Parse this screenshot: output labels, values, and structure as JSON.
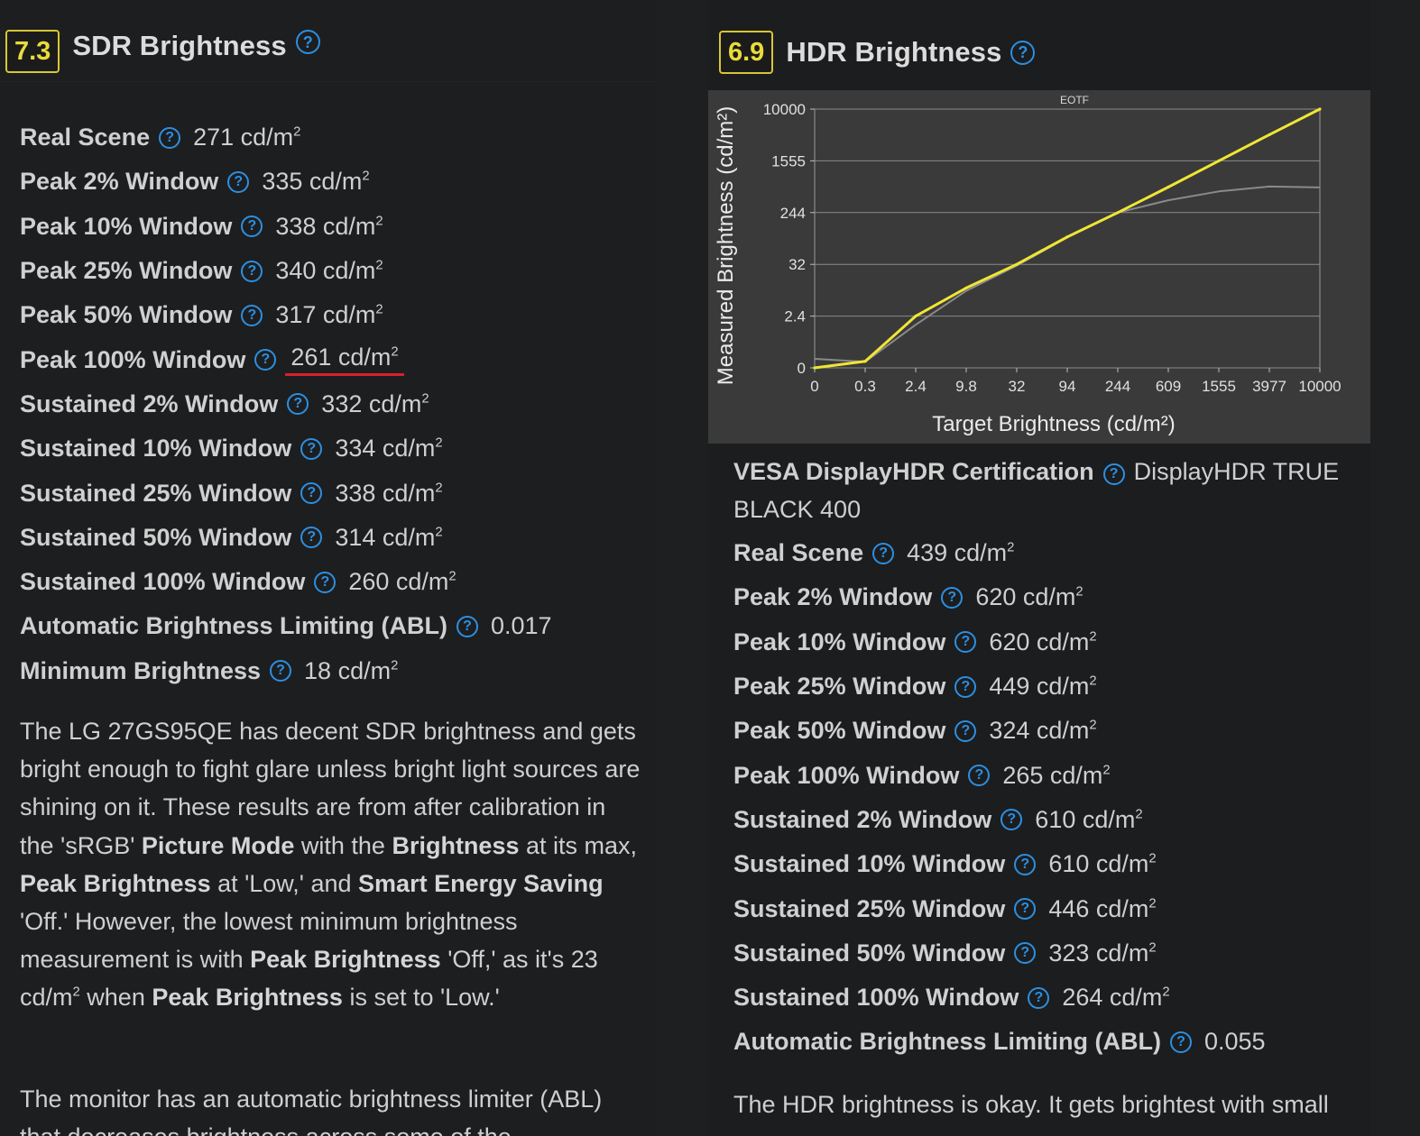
{
  "sdr": {
    "score": "7.3",
    "title": "SDR Brightness",
    "rows": [
      {
        "label": "Real Scene",
        "value": "271 cd/m"
      },
      {
        "label": "Peak 2% Window",
        "value": "335 cd/m"
      },
      {
        "label": "Peak 10% Window",
        "value": "338 cd/m"
      },
      {
        "label": "Peak 25% Window",
        "value": "340 cd/m"
      },
      {
        "label": "Peak 50% Window",
        "value": "317 cd/m"
      },
      {
        "label": "Peak 100% Window",
        "value": "261 cd/m"
      },
      {
        "label": "Sustained 2% Window",
        "value": "332 cd/m"
      },
      {
        "label": "Sustained 10% Window",
        "value": "334 cd/m"
      },
      {
        "label": "Sustained 25% Window",
        "value": "338 cd/m"
      },
      {
        "label": "Sustained 50% Window",
        "value": "314 cd/m"
      },
      {
        "label": "Sustained 100% Window",
        "value": "260 cd/m"
      },
      {
        "label": "Automatic Brightness Limiting (ABL)",
        "value": "0.017"
      },
      {
        "label": "Minimum Brightness",
        "value": "18 cd/m"
      }
    ],
    "para1": {
      "t1": "The LG 27GS95QE has decent SDR brightness and gets bright enough to fight glare unless bright light sources are shining on it. These results are from after calibration in the 'sRGB' ",
      "b1": "Picture Mode",
      "t2": " with the ",
      "b2": "Brightness",
      "t3": " at its max, ",
      "b3": "Peak Brightness",
      "t4": " at 'Low,' and ",
      "b4": "Smart Energy Saving",
      "t5": " 'Off.' However, the lowest minimum brightness measurement is with ",
      "b5": "Peak Brightness",
      "t6": " 'Off,' as it's 23 cd/m",
      "t7": " when ",
      "b6": "Peak Brightness",
      "t8": " is set to 'Low.'"
    },
    "para2": "The monitor has an automatic brightness limiter (ABL) that decreases brightness across some of the"
  },
  "hdr": {
    "score": "6.9",
    "title": "HDR Brightness",
    "cert_label": "VESA DisplayHDR Certification",
    "cert_value": "DisplayHDR TRUE BLACK 400",
    "rows": [
      {
        "label": "Real Scene",
        "value": "439 cd/m"
      },
      {
        "label": "Peak 2% Window",
        "value": "620 cd/m"
      },
      {
        "label": "Peak 10% Window",
        "value": "620 cd/m"
      },
      {
        "label": "Peak 25% Window",
        "value": "449 cd/m"
      },
      {
        "label": "Peak 50% Window",
        "value": "324 cd/m"
      },
      {
        "label": "Peak 100% Window",
        "value": "265 cd/m"
      },
      {
        "label": "Sustained 2% Window",
        "value": "610 cd/m"
      },
      {
        "label": "Sustained 10% Window",
        "value": "610 cd/m"
      },
      {
        "label": "Sustained 25% Window",
        "value": "446 cd/m"
      },
      {
        "label": "Sustained 50% Window",
        "value": "323 cd/m"
      },
      {
        "label": "Sustained 100% Window",
        "value": "264 cd/m"
      },
      {
        "label": "Automatic Brightness Limiting (ABL)",
        "value": "0.055"
      }
    ],
    "para1": "The HDR brightness is okay. It gets brightest with small"
  },
  "help_glyph": "?",
  "sup2": "2",
  "colors": {
    "score_border": "#d7c733",
    "help_icon": "#2d8fe0",
    "underline": "#d8202a",
    "eotf_target": "#f0e634",
    "eotf_measured": "#8a8a8a"
  },
  "chart_data": {
    "type": "line",
    "title": "EOTF",
    "xlabel": "Target Brightness (cd/m²)",
    "ylabel": "Measured Brightness (cd/m²)",
    "x_ticks": [
      "0",
      "0.3",
      "2.4",
      "9.8",
      "32",
      "94",
      "244",
      "609",
      "1555",
      "3977",
      "10000"
    ],
    "y_ticks": [
      "0",
      "2.4",
      "32",
      "244",
      "1555",
      "10000"
    ],
    "grid": true,
    "x": [
      0,
      0.3,
      2.4,
      9.8,
      32,
      94,
      244,
      609,
      1555,
      3977,
      10000
    ],
    "series": [
      {
        "values": [
          0,
          0.3,
          2.4,
          9.8,
          32,
          94,
          244,
          609,
          1555,
          3977,
          10000
        ]
      },
      {
        "values": [
          0.05,
          0.28,
          2.0,
          8.5,
          30,
          92,
          244,
          380,
          520,
          620,
          600
        ]
      }
    ]
  }
}
